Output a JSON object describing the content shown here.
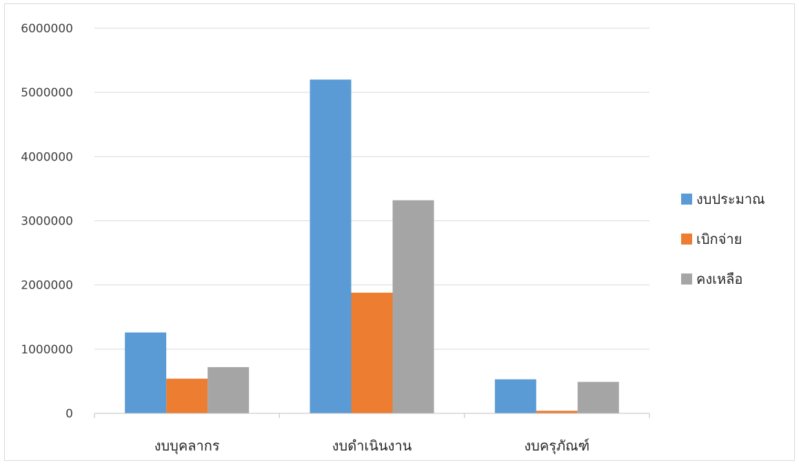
{
  "chart_data": {
    "type": "bar",
    "categories": [
      "งบบุคลากร",
      "งบดำเนินงาน",
      "งบครุภัณฑ์"
    ],
    "series": [
      {
        "name": "งบประมาณ",
        "values": [
          1260000,
          5200000,
          530000
        ],
        "color": "#5b9bd5"
      },
      {
        "name": "เบิกจ่าย",
        "values": [
          540000,
          1880000,
          40000
        ],
        "color": "#ed7d31"
      },
      {
        "name": "คงเหลือ",
        "values": [
          720000,
          3320000,
          490000
        ],
        "color": "#a5a5a5"
      }
    ],
    "yticks": [
      "0",
      "1000000",
      "2000000",
      "3000000",
      "4000000",
      "5000000",
      "6000000"
    ],
    "ylim": [
      0,
      6000000
    ],
    "grid": true,
    "legend": "right"
  }
}
